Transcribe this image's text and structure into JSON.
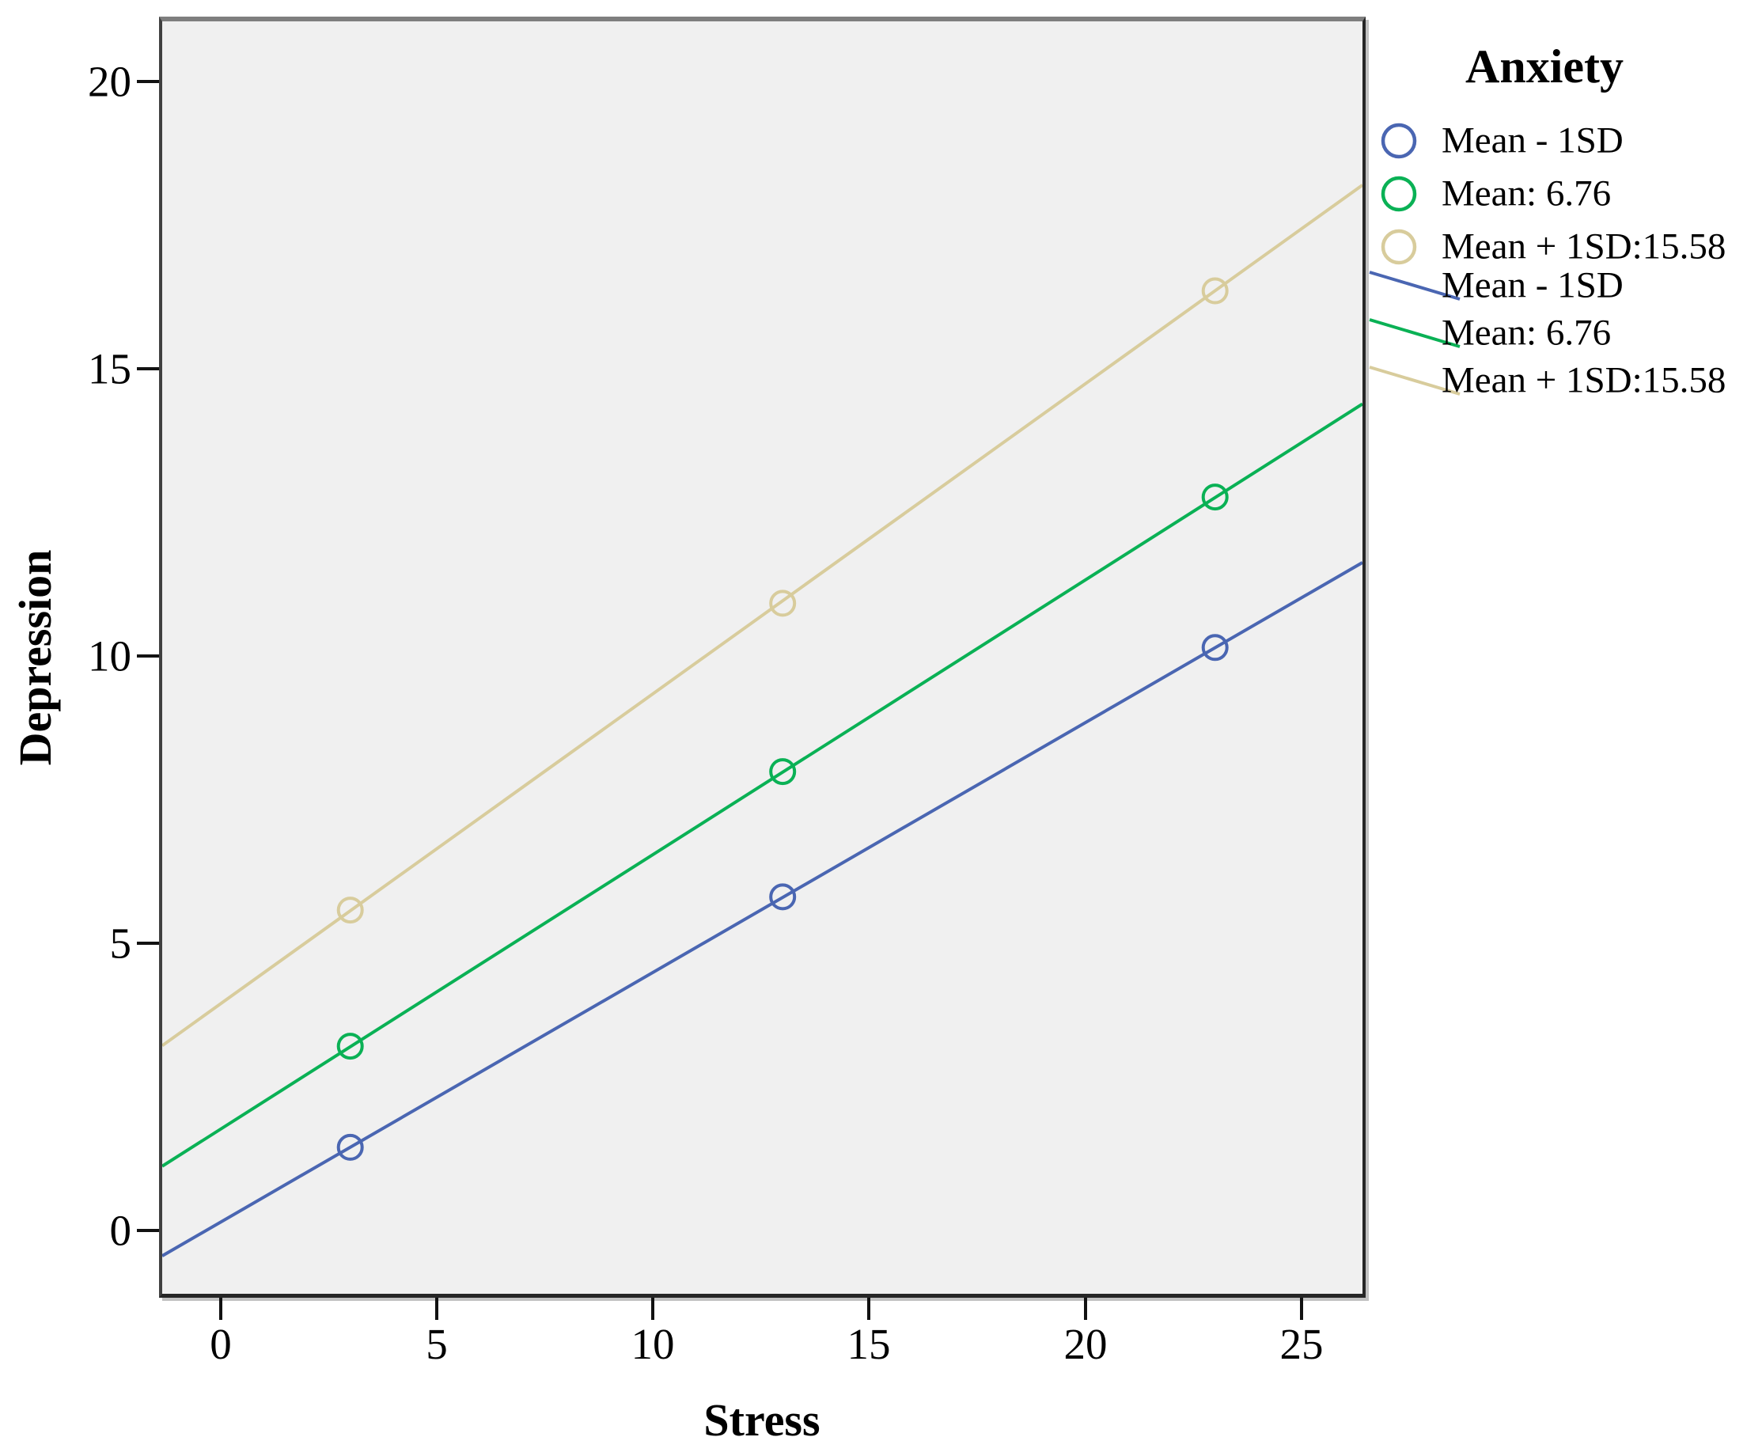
{
  "axes": {
    "x_title": "Stress",
    "y_title": "Depression"
  },
  "legend": {
    "title": "Anxiety",
    "marker_items": [
      {
        "label": "Mean - 1SD",
        "color": "#4a66b2"
      },
      {
        "label": "Mean: 6.76",
        "color": "#0ab155"
      },
      {
        "label": "Mean + 1SD:15.58",
        "color": "#d8cc9c"
      }
    ],
    "line_items": [
      {
        "label": "Mean - 1SD",
        "color": "#4a66b2"
      },
      {
        "label": "Mean: 6.76",
        "color": "#0ab155"
      },
      {
        "label": "Mean + 1SD:15.58",
        "color": "#d8cc9c"
      }
    ]
  },
  "chart_data": {
    "type": "line",
    "title": "",
    "xlabel": "Stress",
    "ylabel": "Depression",
    "legend_title": "Anxiety",
    "legend_position": "top-right",
    "grid": false,
    "plot_background": "#f0f0f0",
    "x_ticks": [
      0,
      5,
      10,
      15,
      20,
      25
    ],
    "y_ticks": [
      0,
      5,
      10,
      15,
      20
    ],
    "xlim": [
      -1.35,
      26.41
    ],
    "ylim": [
      -1.1,
      21.05
    ],
    "series": [
      {
        "name": "Mean - 1SD",
        "color": "#4a66b2",
        "marker": "open-circle",
        "points": [
          [
            3,
            1.45
          ],
          [
            13,
            5.81
          ],
          [
            23,
            10.15
          ]
        ],
        "trend_line": [
          [
            -1.35,
            -0.44
          ],
          [
            26.41,
            11.63
          ]
        ]
      },
      {
        "name": "Mean: 6.76",
        "color": "#0ab155",
        "marker": "open-circle",
        "points": [
          [
            3,
            3.21
          ],
          [
            13,
            7.99
          ],
          [
            23,
            12.77
          ]
        ],
        "trend_line": [
          [
            -1.35,
            1.12
          ],
          [
            26.41,
            14.39
          ]
        ]
      },
      {
        "name": "Mean + 1SD:15.58",
        "color": "#d8cc9c",
        "marker": "open-circle",
        "points": [
          [
            3,
            5.58
          ],
          [
            13,
            10.92
          ],
          [
            23,
            16.36
          ]
        ],
        "trend_line": [
          [
            -1.35,
            3.22
          ],
          [
            26.41,
            18.2
          ]
        ]
      }
    ]
  }
}
